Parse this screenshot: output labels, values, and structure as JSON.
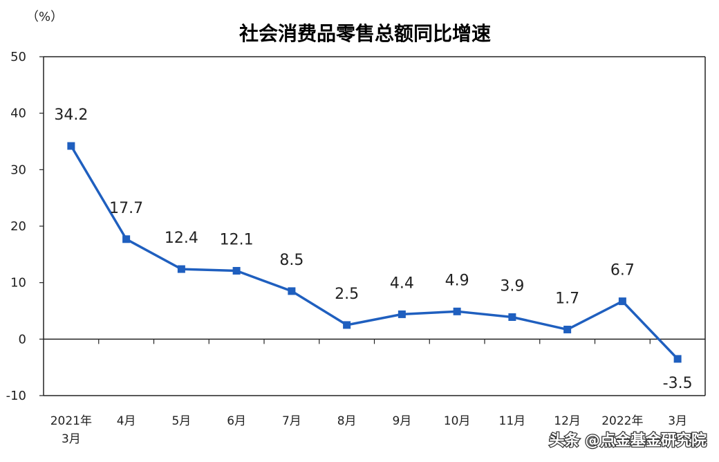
{
  "watermark": "头条 @点金基金研究院",
  "chart_data": {
    "type": "line",
    "title": "社会消费品零售总额同比增速",
    "ylabel": "（%）",
    "xlabel": "",
    "ylim": [
      -10,
      50
    ],
    "yticks": [
      "50",
      "40",
      "30",
      "20",
      "10",
      "0",
      "-10"
    ],
    "categories": [
      [
        "2021年",
        "3月"
      ],
      [
        "4月"
      ],
      [
        "5月"
      ],
      [
        "6月"
      ],
      [
        "7月"
      ],
      [
        "8月"
      ],
      [
        "9月"
      ],
      [
        "10月"
      ],
      [
        "11月"
      ],
      [
        "12月"
      ],
      [
        "2022年"
      ],
      [
        "3月"
      ]
    ],
    "series": [
      {
        "values": [
          34.2,
          17.7,
          12.4,
          12.1,
          8.5,
          2.5,
          4.4,
          4.9,
          3.9,
          1.7,
          6.7,
          -3.5
        ],
        "labels": [
          "34.2",
          "17.7",
          "12.4",
          "12.1",
          "8.5",
          "2.5",
          "4.4",
          "4.9",
          "3.9",
          "1.7",
          "6.7",
          "-3.5"
        ],
        "color": "#1f5fbf"
      }
    ],
    "line_color": "#1f5fbf",
    "axis_color": "#222222",
    "grid": false,
    "legend": "none"
  }
}
